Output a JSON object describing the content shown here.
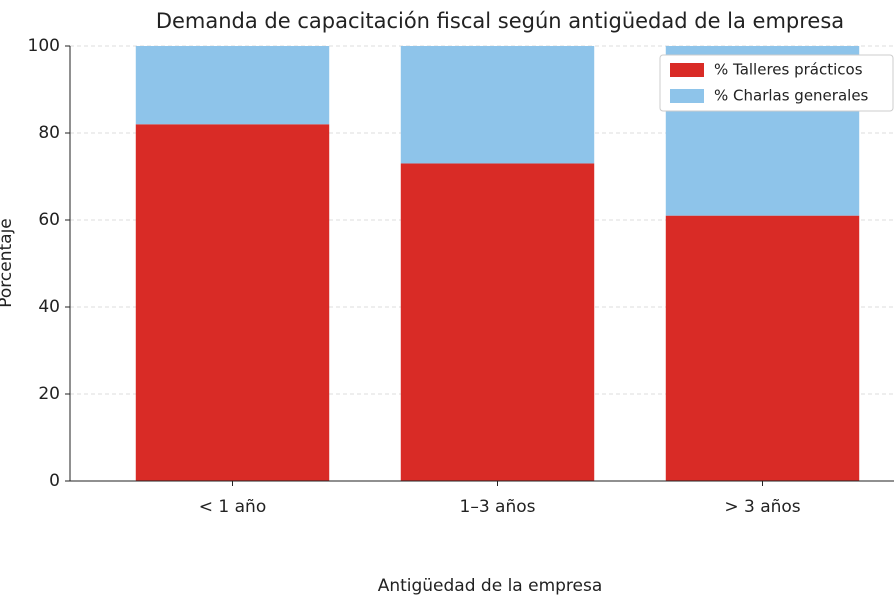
{
  "chart_data": {
    "type": "stacked_bar",
    "title": "Demanda de capacitación fiscal según antigüedad de la empresa",
    "x_label": "Antigüedad de la empresa",
    "y_label": "Porcentaje",
    "categories": [
      "< 1 año",
      "1–3 años",
      "> 3 años"
    ],
    "series": [
      {
        "name": "% Talleres prácticos",
        "color": "#d92b26",
        "values": [
          82,
          73,
          61
        ]
      },
      {
        "name": "% Charlas generales",
        "color": "#8ec4ea",
        "values": [
          18,
          27,
          39
        ]
      }
    ],
    "ylim": [
      0,
      100
    ],
    "yticks": [
      0,
      20,
      40,
      60,
      80,
      100
    ],
    "grid": true,
    "legend": "upper right"
  }
}
